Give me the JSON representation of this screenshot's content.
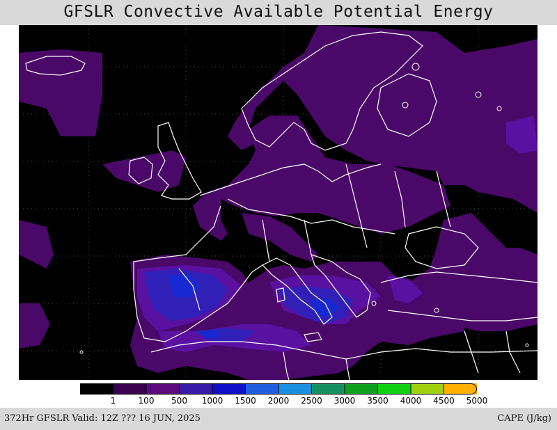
{
  "title": "GFSLR Convective Available Potential Energy",
  "footer": {
    "valid": "372Hr GFSLR Valid: 12Z ??? 16 JUN, 2025",
    "units": "CAPE (J/kg)"
  },
  "colorbar": {
    "labels": [
      "1",
      "100",
      "500",
      "1000",
      "1500",
      "2000",
      "2500",
      "3000",
      "3500",
      "4000",
      "4500",
      "5000"
    ],
    "colors": [
      "#000000",
      "#3a0050",
      "#5a0a7a",
      "#3a1aa8",
      "#1010c8",
      "#2060e0",
      "#1a90e0",
      "#159060",
      "#10a020",
      "#10d010",
      "#a0d010",
      "#ffb000"
    ]
  },
  "map": {
    "cape_colors": {
      "low": "#4a0868",
      "mid": "#5a10a0",
      "high": "#3020b8",
      "peak": "#1828d0"
    },
    "coastline_color": "#ffffff"
  }
}
